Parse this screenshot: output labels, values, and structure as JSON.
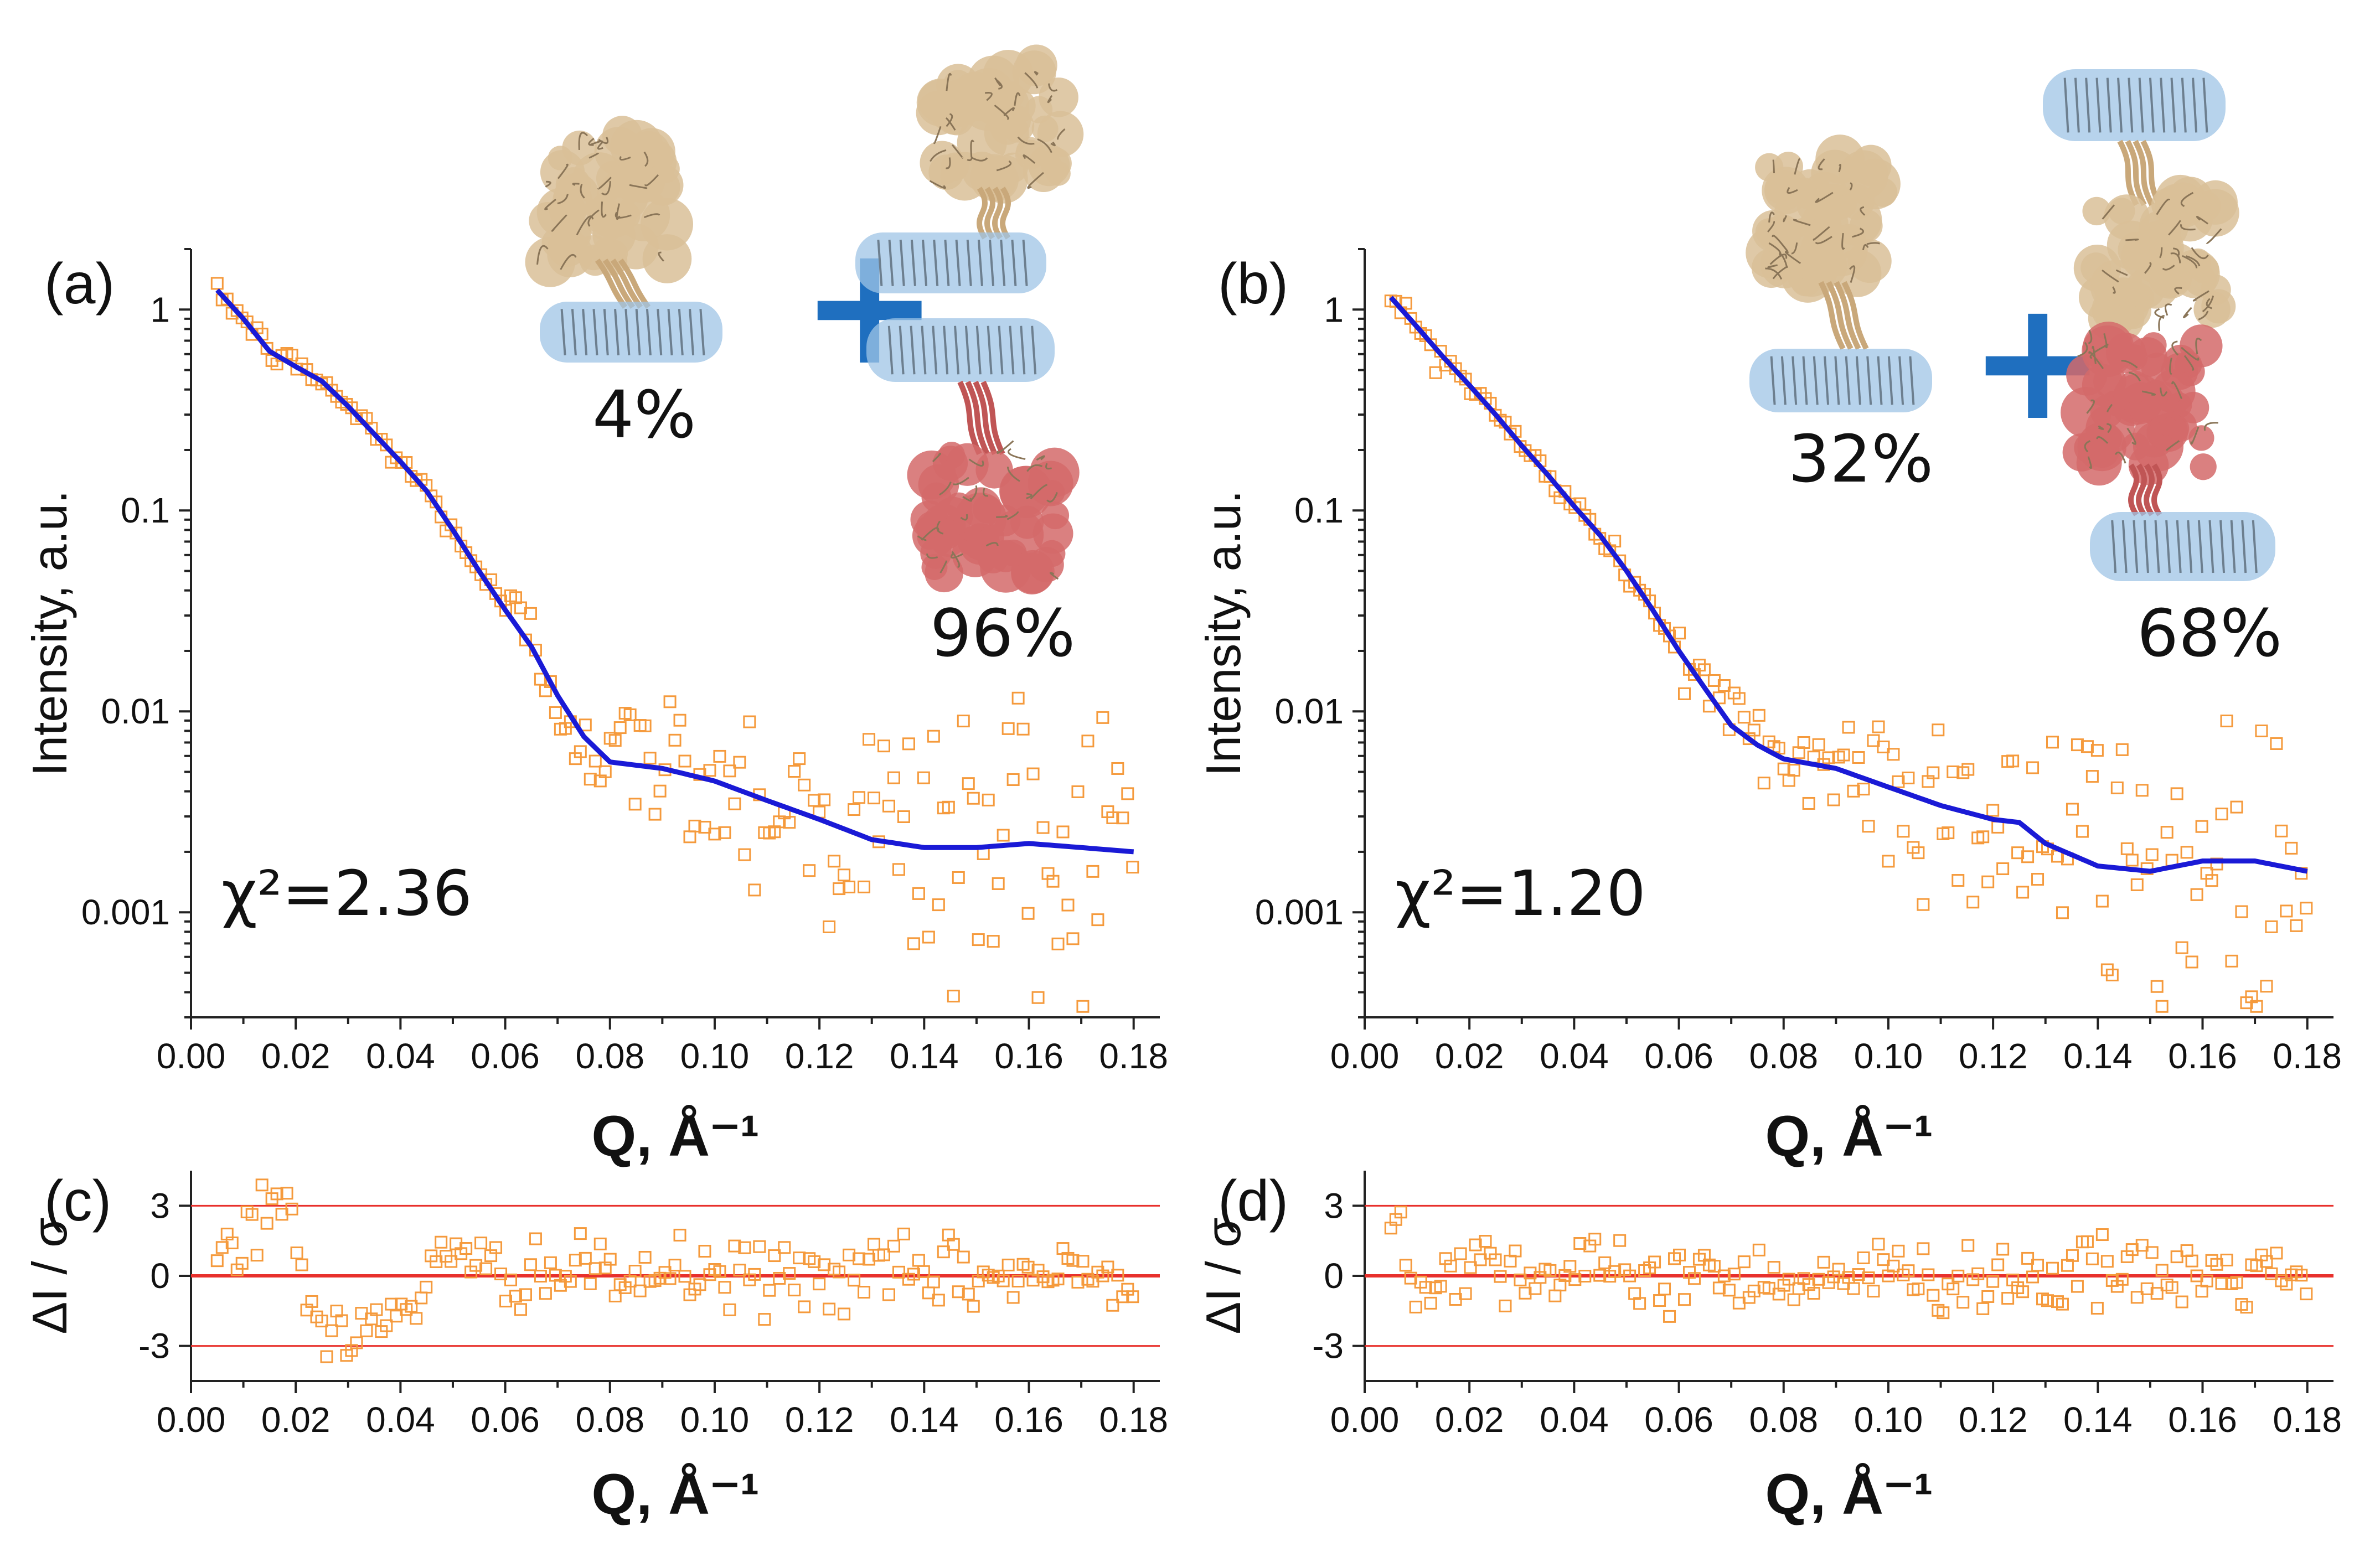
{
  "figure": {
    "panels": [
      {
        "id": "a",
        "label": "(a)",
        "ylabel": "Intensity, a.u.",
        "xlabel": "Q, Å⁻¹",
        "chi2": "χ²=2.36",
        "insets": [
          {
            "pct": "4%"
          },
          {
            "pct": "96%"
          }
        ],
        "fit_end": 0.002
      },
      {
        "id": "b",
        "label": "(b)",
        "ylabel": "Intensity, a.u.",
        "xlabel": "Q, Å⁻¹",
        "chi2": "χ²=1.20",
        "insets": [
          {
            "pct": "32%"
          },
          {
            "pct": "68%"
          }
        ],
        "fit_end": 0.0016
      },
      {
        "id": "c",
        "label": "(c)",
        "ylabel": "ΔI / σ",
        "xlabel": "Q, Å⁻¹"
      },
      {
        "id": "d",
        "label": "(d)",
        "ylabel": "ΔI / σ",
        "xlabel": "Q, Å⁻¹"
      }
    ],
    "plus_sign": "+",
    "colors": {
      "points": "#f59a3c",
      "fit": "#1a1ad6",
      "ref": "#e8302c",
      "membrane": "#9fc4e6"
    }
  },
  "chart_data": [
    {
      "type": "scatter",
      "panel": "a",
      "title": "",
      "xlabel": "Q, Å⁻¹",
      "ylabel": "Intensity, a.u.",
      "yscale": "log",
      "xlim": [
        0.0,
        0.185
      ],
      "ylim": [
        0.0003,
        2.0
      ],
      "xticks": [
        "0.00",
        "0.02",
        "0.04",
        "0.06",
        "0.08",
        "0.10",
        "0.12",
        "0.14",
        "0.16",
        "0.18"
      ],
      "yticks": [
        "0.001",
        "0.01",
        "0.1",
        "1"
      ],
      "annotation": "χ²=2.36",
      "series": [
        {
          "name": "data",
          "style": "open-square",
          "description": "SANS data, decaying from ~1.3 at Q=0.005 to noisy ~0.0005–0.015 above Q=0.08"
        },
        {
          "name": "fit",
          "style": "line",
          "x": [
            0.005,
            0.01,
            0.015,
            0.02,
            0.025,
            0.03,
            0.035,
            0.04,
            0.045,
            0.05,
            0.055,
            0.06,
            0.065,
            0.07,
            0.075,
            0.08,
            0.09,
            0.1,
            0.11,
            0.12,
            0.13,
            0.14,
            0.15,
            0.16,
            0.17,
            0.18
          ],
          "y": [
            1.25,
            0.9,
            0.62,
            0.52,
            0.44,
            0.33,
            0.24,
            0.175,
            0.125,
            0.08,
            0.05,
            0.032,
            0.021,
            0.012,
            0.0075,
            0.0056,
            0.0052,
            0.0045,
            0.0036,
            0.0029,
            0.0023,
            0.0021,
            0.0021,
            0.0022,
            0.0021,
            0.002
          ]
        }
      ]
    },
    {
      "type": "scatter",
      "panel": "b",
      "title": "",
      "xlabel": "Q, Å⁻¹",
      "ylabel": "Intensity, a.u.",
      "yscale": "log",
      "xlim": [
        0.0,
        0.185
      ],
      "ylim": [
        0.0003,
        2.0
      ],
      "xticks": [
        "0.00",
        "0.02",
        "0.04",
        "0.06",
        "0.08",
        "0.10",
        "0.12",
        "0.14",
        "0.16",
        "0.18"
      ],
      "yticks": [
        "0.001",
        "0.01",
        "0.1",
        "1"
      ],
      "annotation": "χ²=1.20",
      "series": [
        {
          "name": "data",
          "style": "open-square",
          "description": "SANS data, decaying from ~1.3 at Q=0.005 to noisy ~0.0005–0.015 above Q=0.08"
        },
        {
          "name": "fit",
          "style": "line",
          "x": [
            0.005,
            0.01,
            0.015,
            0.02,
            0.025,
            0.03,
            0.035,
            0.04,
            0.045,
            0.05,
            0.055,
            0.06,
            0.065,
            0.07,
            0.075,
            0.08,
            0.09,
            0.1,
            0.11,
            0.12,
            0.125,
            0.13,
            0.14,
            0.15,
            0.16,
            0.17,
            0.18
          ],
          "y": [
            1.15,
            0.82,
            0.58,
            0.42,
            0.3,
            0.21,
            0.15,
            0.105,
            0.075,
            0.05,
            0.032,
            0.02,
            0.013,
            0.0085,
            0.0068,
            0.0058,
            0.0052,
            0.0042,
            0.0034,
            0.0029,
            0.0028,
            0.0022,
            0.0017,
            0.0016,
            0.0018,
            0.0018,
            0.0016
          ]
        }
      ]
    },
    {
      "type": "scatter",
      "panel": "c",
      "xlabel": "Q, Å⁻¹",
      "ylabel": "ΔI / σ",
      "xlim": [
        0.0,
        0.185
      ],
      "ylim": [
        -4.5,
        4.5
      ],
      "xticks": [
        "0.00",
        "0.02",
        "0.04",
        "0.06",
        "0.08",
        "0.10",
        "0.12",
        "0.14",
        "0.16",
        "0.18"
      ],
      "yticks": [
        "-3",
        "0",
        "3"
      ],
      "reference_lines": [
        -3,
        0,
        3
      ],
      "series": [
        {
          "name": "residuals",
          "style": "open-square",
          "description": "residuals up to ~+4 near Q=0.015 and down to ~-4 near Q=0.03, otherwise within ±2"
        }
      ]
    },
    {
      "type": "scatter",
      "panel": "d",
      "xlabel": "Q, Å⁻¹",
      "ylabel": "ΔI / σ",
      "xlim": [
        0.0,
        0.185
      ],
      "ylim": [
        -4.5,
        4.5
      ],
      "xticks": [
        "0.00",
        "0.02",
        "0.04",
        "0.06",
        "0.08",
        "0.10",
        "0.12",
        "0.14",
        "0.16",
        "0.18"
      ],
      "yticks": [
        "-3",
        "0",
        "3"
      ],
      "reference_lines": [
        -3,
        0,
        3
      ],
      "series": [
        {
          "name": "residuals",
          "style": "open-square",
          "description": "residuals mostly within ±2 across the full Q range"
        }
      ]
    }
  ]
}
